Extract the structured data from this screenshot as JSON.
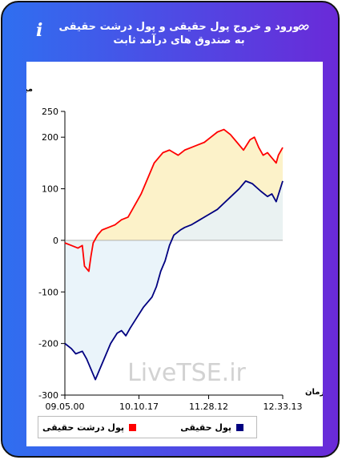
{
  "header": {
    "title": "ورود و خروج پول حقیقی و پول درشت حقیقی به صندوق های درآمد ثابت",
    "info_icon": "info-icon",
    "link_icon": "link-icon"
  },
  "watermark": "LiveTSE.ir",
  "colors": {
    "real_money": "#000080",
    "real_large_money": "#ff0000",
    "real_money_fill": "#e6f2f9",
    "real_large_money_fill": "#fbf0c0"
  },
  "chart_data": {
    "type": "area",
    "ylabel": "میلیارد تومان",
    "xlabel": "زمان",
    "ylim": [
      -300,
      250
    ],
    "yticks": [
      -300,
      -200,
      -100,
      0,
      100,
      200,
      250
    ],
    "xticks": [
      "09.05.00",
      "10.10.17",
      "11.28.12",
      "12.33.13"
    ],
    "legend_position": "bottom",
    "grid": false,
    "series": [
      {
        "name": "پول حقیقی",
        "color": "#000080",
        "x": [
          0,
          3,
          5,
          8,
          10,
          14,
          17,
          21,
          24,
          26,
          28,
          30,
          33,
          36,
          40,
          42,
          44,
          46,
          48,
          50,
          53,
          55,
          58,
          62,
          66,
          70,
          75,
          80,
          83,
          86,
          90,
          93,
          95,
          97,
          100
        ],
        "values": [
          -200,
          -210,
          -220,
          -215,
          -230,
          -270,
          -240,
          -200,
          -180,
          -175,
          -185,
          -170,
          -150,
          -130,
          -110,
          -90,
          -60,
          -40,
          -10,
          10,
          20,
          25,
          30,
          40,
          50,
          60,
          80,
          100,
          115,
          110,
          95,
          85,
          90,
          75,
          115
        ]
      },
      {
        "name": "پول درشت حقیقی",
        "color": "#ff0000",
        "x": [
          0,
          3,
          6,
          8,
          9,
          11,
          12,
          13,
          15,
          17,
          20,
          23,
          26,
          29,
          31,
          33,
          35,
          37,
          39,
          41,
          43,
          45,
          48,
          50,
          52,
          55,
          58,
          61,
          64,
          67,
          70,
          73,
          76,
          79,
          82,
          85,
          87,
          89,
          91,
          93,
          95,
          97,
          98,
          100
        ],
        "values": [
          -5,
          -10,
          -15,
          -10,
          -50,
          -60,
          -30,
          -5,
          10,
          20,
          25,
          30,
          40,
          45,
          60,
          75,
          90,
          110,
          130,
          150,
          160,
          170,
          175,
          170,
          165,
          175,
          180,
          185,
          190,
          200,
          210,
          215,
          205,
          190,
          175,
          195,
          200,
          180,
          165,
          170,
          160,
          150,
          165,
          180
        ]
      }
    ]
  }
}
